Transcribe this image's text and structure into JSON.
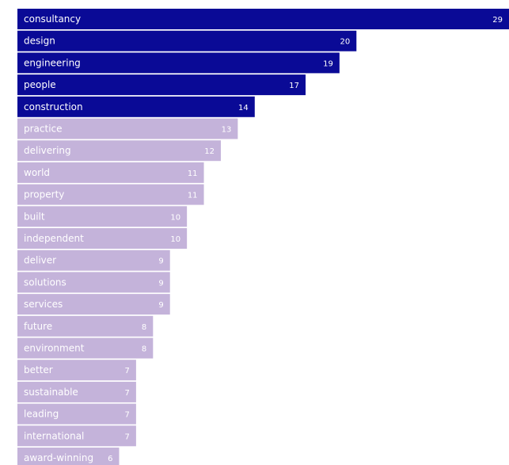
{
  "chart_data": {
    "type": "bar",
    "orientation": "horizontal",
    "categories": [
      "consultancy",
      "design",
      "engineering",
      "people",
      "construction",
      "practice",
      "delivering",
      "world",
      "property",
      "built",
      "independent",
      "deliver",
      "solutions",
      "services",
      "future",
      "environment",
      "better",
      "sustainable",
      "leading",
      "international",
      "award-winning"
    ],
    "values": [
      29,
      20,
      19,
      17,
      14,
      13,
      12,
      11,
      11,
      10,
      10,
      9,
      9,
      9,
      8,
      8,
      7,
      7,
      7,
      7,
      6
    ],
    "highlight_count": 5,
    "colors": {
      "highlight": "#0a0a96",
      "normal": "#c4b3da",
      "label": "#ffffff"
    }
  }
}
